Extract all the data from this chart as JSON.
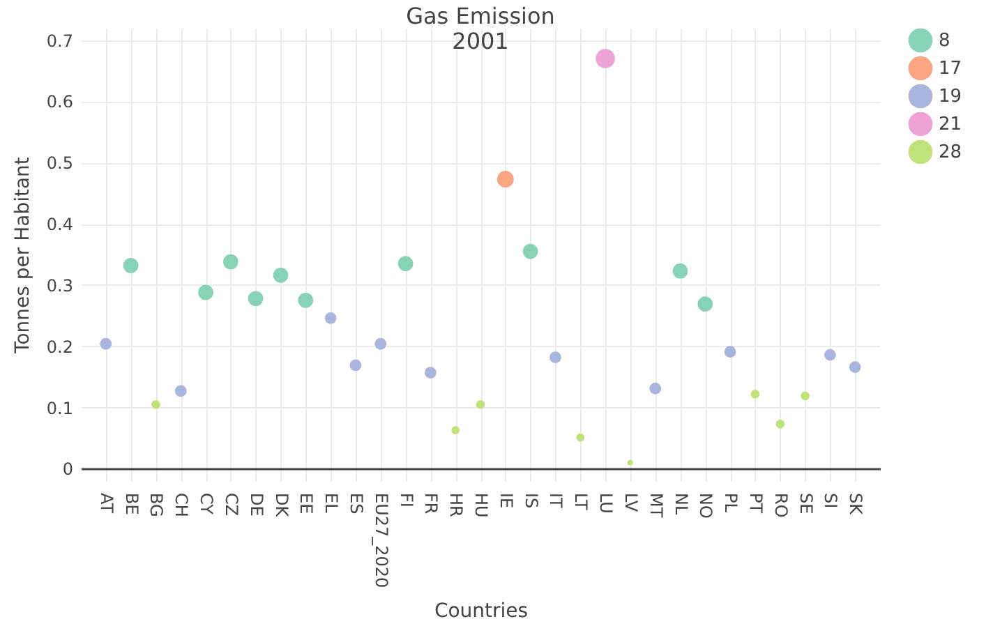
{
  "chart_data": {
    "type": "bubble",
    "title": "Gas Emission",
    "subtitle": "2001",
    "xlabel": "Countries",
    "ylabel": "Tonnes per Habitant",
    "categories": [
      "AT",
      "BE",
      "BG",
      "CH",
      "CY",
      "CZ",
      "DE",
      "DK",
      "EE",
      "EL",
      "ES",
      "EU27_2020",
      "FI",
      "FR",
      "HR",
      "HU",
      "IE",
      "IS",
      "IT",
      "LT",
      "LU",
      "LV",
      "MT",
      "NL",
      "NO",
      "PL",
      "PT",
      "RO",
      "SE",
      "SI",
      "SK"
    ],
    "series": [
      {
        "name": "8",
        "color": "#88d3b8",
        "values": [
          null,
          0.332,
          null,
          null,
          0.288,
          0.338,
          0.278,
          0.316,
          0.275,
          null,
          null,
          null,
          0.335,
          null,
          null,
          null,
          null,
          0.355,
          null,
          null,
          null,
          null,
          null,
          0.323,
          0.269,
          null,
          null,
          null,
          null,
          null,
          null
        ],
        "sizes": [
          null,
          0.62,
          null,
          null,
          0.62,
          0.62,
          0.62,
          0.62,
          0.62,
          null,
          null,
          null,
          0.62,
          null,
          null,
          null,
          null,
          0.62,
          null,
          null,
          null,
          null,
          null,
          0.62,
          0.62,
          null,
          null,
          null,
          null,
          null,
          null
        ]
      },
      {
        "name": "17",
        "color": "#fca582",
        "values": [
          null,
          null,
          null,
          null,
          null,
          null,
          null,
          null,
          null,
          null,
          null,
          null,
          null,
          null,
          null,
          null,
          0.473,
          null,
          null,
          null,
          null,
          null,
          null,
          null,
          null,
          null,
          null,
          null,
          null,
          null,
          null
        ],
        "sizes": [
          null,
          null,
          null,
          null,
          null,
          null,
          null,
          null,
          null,
          null,
          null,
          null,
          null,
          null,
          null,
          null,
          0.76,
          null,
          null,
          null,
          null,
          null,
          null,
          null,
          null,
          null,
          null,
          null,
          null,
          null,
          null
        ]
      },
      {
        "name": "19",
        "color": "#a9b5dc",
        "values": [
          0.204,
          null,
          null,
          0.127,
          null,
          null,
          null,
          null,
          null,
          0.246,
          0.169,
          0.204,
          null,
          0.157,
          null,
          null,
          null,
          null,
          0.182,
          null,
          null,
          null,
          0.131,
          null,
          null,
          0.191,
          null,
          null,
          null,
          0.186,
          0.166
        ],
        "sizes": [
          0.37,
          null,
          null,
          0.37,
          null,
          null,
          null,
          null,
          null,
          0.37,
          0.37,
          0.37,
          null,
          0.37,
          null,
          null,
          null,
          null,
          0.37,
          null,
          null,
          null,
          0.37,
          null,
          null,
          0.37,
          null,
          null,
          null,
          0.37,
          0.37
        ]
      },
      {
        "name": "21",
        "color": "#eea3d6",
        "values": [
          null,
          null,
          null,
          null,
          null,
          null,
          null,
          null,
          null,
          null,
          null,
          null,
          null,
          null,
          null,
          null,
          null,
          null,
          null,
          null,
          0.67,
          null,
          null,
          null,
          null,
          null,
          null,
          null,
          null,
          null,
          null
        ],
        "sizes": [
          null,
          null,
          null,
          null,
          null,
          null,
          null,
          null,
          null,
          null,
          null,
          null,
          null,
          null,
          null,
          null,
          null,
          null,
          null,
          null,
          1,
          null,
          null,
          null,
          null,
          null,
          null,
          null,
          null,
          null,
          null
        ]
      },
      {
        "name": "28",
        "color": "#bfe37a",
        "values": [
          null,
          null,
          0.105,
          null,
          null,
          null,
          null,
          null,
          null,
          null,
          null,
          null,
          null,
          null,
          0.063,
          0.105,
          null,
          null,
          null,
          0.051,
          null,
          0.01,
          null,
          null,
          null,
          null,
          0.122,
          0.073,
          0.119,
          null,
          null
        ],
        "sizes": [
          null,
          null,
          0.21,
          null,
          null,
          null,
          null,
          null,
          null,
          null,
          null,
          null,
          null,
          null,
          0.18,
          0.21,
          null,
          null,
          null,
          0.18,
          null,
          0.09,
          null,
          null,
          null,
          null,
          0.21,
          0.21,
          0.21,
          null,
          null
        ]
      }
    ],
    "ylim": [
      -0.02,
      0.72
    ],
    "yticks": [
      0,
      0.1,
      0.2,
      0.3,
      0.4,
      0.5,
      0.6,
      0.7
    ],
    "grid": true,
    "legend": "top right"
  }
}
